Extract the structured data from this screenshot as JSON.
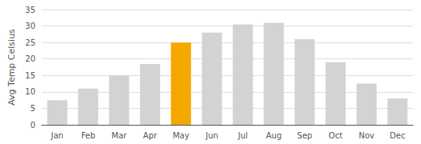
{
  "chart_data": {
    "type": "bar",
    "categories": [
      "Jan",
      "Feb",
      "Mar",
      "Apr",
      "May",
      "Jun",
      "Jul",
      "Aug",
      "Sep",
      "Oct",
      "Nov",
      "Dec"
    ],
    "values": [
      7.5,
      11,
      15,
      18.5,
      25,
      28,
      30.5,
      31,
      26,
      19,
      12.5,
      8
    ],
    "colors": [
      "#d3d3d3",
      "#d3d3d3",
      "#d3d3d3",
      "#d3d3d3",
      "#f5a800",
      "#d3d3d3",
      "#d3d3d3",
      "#d3d3d3",
      "#d3d3d3",
      "#d3d3d3",
      "#d3d3d3",
      "#d3d3d3"
    ],
    "ylabel": "Avg Temp Celsius",
    "ylim": [
      0,
      35
    ],
    "yticks": [
      0,
      5,
      10,
      15,
      20,
      25,
      30,
      35
    ],
    "grid": true
  }
}
